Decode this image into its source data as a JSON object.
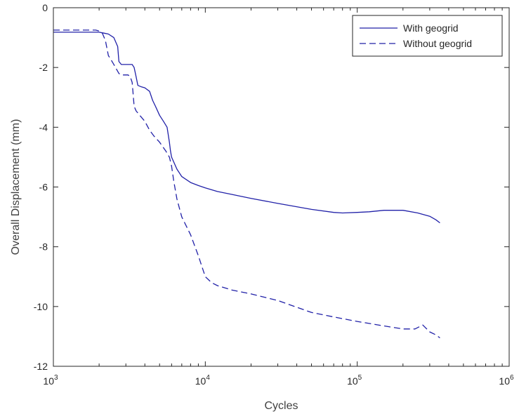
{
  "chart_data": {
    "type": "line",
    "x_scale": "log",
    "xlabel": "Cycles",
    "ylabel": "Overall Displacement (mm)",
    "xlim": [
      1000,
      1000000
    ],
    "ylim": [
      -12,
      0
    ],
    "x_ticks": [
      {
        "value": 1000,
        "base": "10",
        "exp": "3"
      },
      {
        "value": 10000,
        "base": "10",
        "exp": "4"
      },
      {
        "value": 100000,
        "base": "10",
        "exp": "5"
      },
      {
        "value": 1000000,
        "base": "10",
        "exp": "6"
      }
    ],
    "y_ticks": [
      {
        "value": 0,
        "label": "0"
      },
      {
        "value": -2,
        "label": "-2"
      },
      {
        "value": -4,
        "label": "-4"
      },
      {
        "value": -6,
        "label": "-6"
      },
      {
        "value": -8,
        "label": "-8"
      },
      {
        "value": -10,
        "label": "-10"
      },
      {
        "value": -12,
        "label": "-12"
      }
    ],
    "grid": false,
    "legend_position": "top-right",
    "series": [
      {
        "name": "With geogrid",
        "color": "#2121a8",
        "style": "solid",
        "x": [
          1000,
          2000,
          2150,
          2300,
          2500,
          2650,
          2700,
          2800,
          3000,
          3300,
          3400,
          3500,
          3600,
          3800,
          4000,
          4300,
          4500,
          4700,
          5000,
          5300,
          5600,
          5800,
          5900,
          6000,
          6500,
          7000,
          8000,
          9000,
          10000,
          12000,
          15000,
          20000,
          30000,
          50000,
          70000,
          80000,
          100000,
          120000,
          150000,
          200000,
          250000,
          300000,
          330000,
          350000
        ],
        "y": [
          -0.82,
          -0.82,
          -0.85,
          -0.88,
          -1.0,
          -1.3,
          -1.8,
          -1.9,
          -1.9,
          -1.9,
          -2.0,
          -2.3,
          -2.6,
          -2.65,
          -2.68,
          -2.8,
          -3.1,
          -3.3,
          -3.6,
          -3.8,
          -4.0,
          -4.5,
          -4.8,
          -5.0,
          -5.4,
          -5.65,
          -5.85,
          -5.95,
          -6.03,
          -6.15,
          -6.25,
          -6.38,
          -6.55,
          -6.75,
          -6.85,
          -6.87,
          -6.85,
          -6.83,
          -6.78,
          -6.78,
          -6.87,
          -6.98,
          -7.1,
          -7.2
        ]
      },
      {
        "name": "Without geogrid",
        "color": "#2121a8",
        "style": "dashed",
        "x": [
          1000,
          1900,
          2000,
          2100,
          2200,
          2300,
          2400,
          2500,
          2700,
          2800,
          2900,
          3000,
          3100,
          3200,
          3300,
          3400,
          3500,
          3700,
          4000,
          4300,
          4600,
          5000,
          5500,
          5800,
          6000,
          6200,
          6500,
          7000,
          8000,
          9000,
          10000,
          11000,
          12000,
          15000,
          20000,
          30000,
          50000,
          70000,
          100000,
          150000,
          200000,
          240000,
          270000,
          280000,
          300000,
          330000,
          350000
        ],
        "y": [
          -0.75,
          -0.75,
          -0.78,
          -0.85,
          -1.1,
          -1.6,
          -1.75,
          -1.9,
          -2.2,
          -2.25,
          -2.25,
          -2.25,
          -2.25,
          -2.3,
          -2.5,
          -3.3,
          -3.45,
          -3.6,
          -3.8,
          -4.1,
          -4.3,
          -4.5,
          -4.8,
          -5.0,
          -5.3,
          -5.8,
          -6.4,
          -7.0,
          -7.6,
          -8.3,
          -9.0,
          -9.2,
          -9.3,
          -9.45,
          -9.58,
          -9.8,
          -10.2,
          -10.35,
          -10.5,
          -10.65,
          -10.75,
          -10.75,
          -10.62,
          -10.7,
          -10.85,
          -10.95,
          -11.05
        ]
      }
    ]
  }
}
